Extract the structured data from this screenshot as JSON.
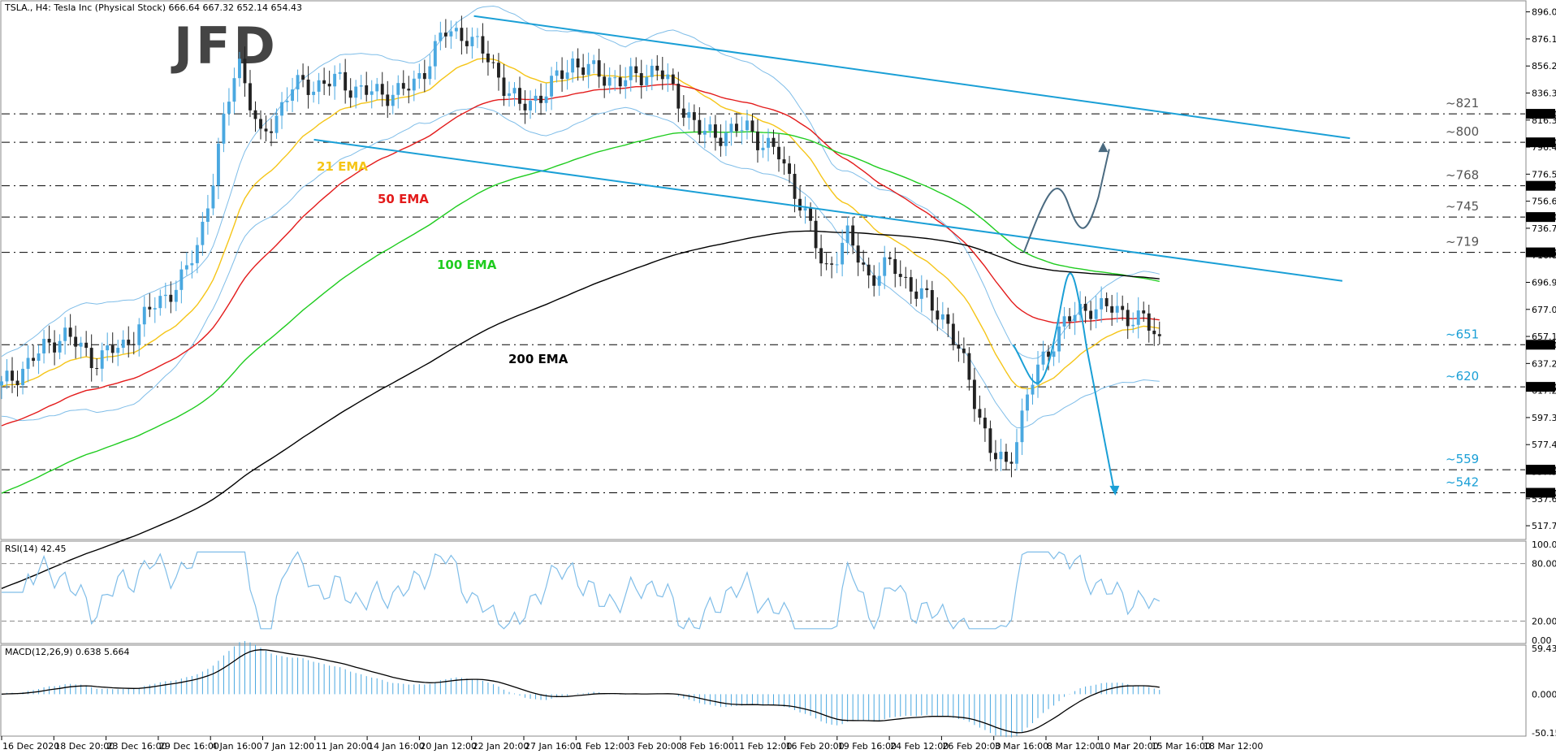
{
  "header": {
    "symbol_line": "TSLA., H4:  Tesla Inc (Physical Stock)  666.64 667.32 652.14 654.43"
  },
  "logo": "JFD",
  "colors": {
    "bull": "#4aa8e0",
    "bear": "#222222",
    "ema21": "#f5c518",
    "ema50": "#e31b1b",
    "ema100": "#1fcc1f",
    "ema200": "#000000",
    "bands": "#7fbde8",
    "channel": "#1a9fd6",
    "projection_up": "#4a6a80",
    "projection_down": "#1a9fd6",
    "level_line": "#000000"
  },
  "chart_data": [
    {
      "type": "candlestick",
      "panel": "price",
      "ylim": [
        510,
        900
      ],
      "y_ticks": [
        "896.05",
        "876.12",
        "856.21",
        "836.30",
        "816.39",
        "796.48",
        "776.57",
        "756.66",
        "736.75",
        "716.84",
        "696.93",
        "677.02",
        "657.11",
        "637.20",
        "617.29",
        "597.38",
        "577.47",
        "557.56",
        "537.65",
        "517.74"
      ],
      "x_ticks": [
        "16 Dec 2020",
        "18 Dec 20:00",
        "23 Dec 16:00",
        "29 Dec 16:00",
        "4 Jan 16:00",
        "7 Jan 12:00",
        "11 Jan 20:00",
        "14 Jan 16:00",
        "20 Jan 12:00",
        "22 Jan 20:00",
        "27 Jan 16:00",
        "1 Feb 12:00",
        "3 Feb 20:00",
        "8 Feb 16:00",
        "11 Feb 12:00",
        "16 Feb 20:00",
        "19 Feb 16:00",
        "24 Feb 12:00",
        "26 Feb 20:00",
        "3 Mar 16:00",
        "8 Mar 12:00",
        "10 Mar 20:00",
        "15 Mar 16:00",
        "18 Mar 12:00"
      ],
      "series": [
        {
          "name": "21 EMA"
        },
        {
          "name": "50 EMA"
        },
        {
          "name": "100 EMA"
        },
        {
          "name": "200 EMA"
        }
      ],
      "levels": [
        {
          "label": "~821",
          "value": 821,
          "tag": "821.00",
          "style": "dark"
        },
        {
          "label": "~800",
          "value": 800,
          "tag": "800.00",
          "style": "dark"
        },
        {
          "label": "~768",
          "value": 768,
          "tag": "768.00",
          "style": "dark"
        },
        {
          "label": "~745",
          "value": 745,
          "tag": "745.00",
          "style": "dark"
        },
        {
          "label": "~719",
          "value": 719,
          "tag": "719.00",
          "style": "dark"
        },
        {
          "label": "~651",
          "value": 651,
          "tag": "651.00",
          "style": "blue"
        },
        {
          "label": "~620",
          "value": 620,
          "tag": "620.00",
          "style": "blue"
        },
        {
          "label": "~559",
          "value": 559,
          "tag": "559.00",
          "style": "blue"
        },
        {
          "label": "~542",
          "value": 542,
          "tag": "542.00",
          "style": "blue"
        }
      ],
      "channel": {
        "upper": [
          {
            "x": 0.31,
            "y": 893
          },
          {
            "x": 0.885,
            "y": 803
          }
        ],
        "lower": [
          {
            "x": 0.205,
            "y": 802
          },
          {
            "x": 0.88,
            "y": 698
          }
        ]
      }
    },
    {
      "type": "line",
      "panel": "rsi",
      "label": "RSI(14) 42.45",
      "ylim": [
        0,
        100
      ],
      "y_ticks": [
        "100.00",
        "80.00",
        "20.00",
        "0.00"
      ],
      "levels": [
        80,
        20
      ]
    },
    {
      "type": "bar",
      "panel": "macd",
      "label": "MACD(12,26,9) 0.638 5.664",
      "ylim": [
        -50.151,
        59.435
      ],
      "y_ticks": [
        "59.435",
        "0.000",
        "-50.151"
      ]
    }
  ]
}
